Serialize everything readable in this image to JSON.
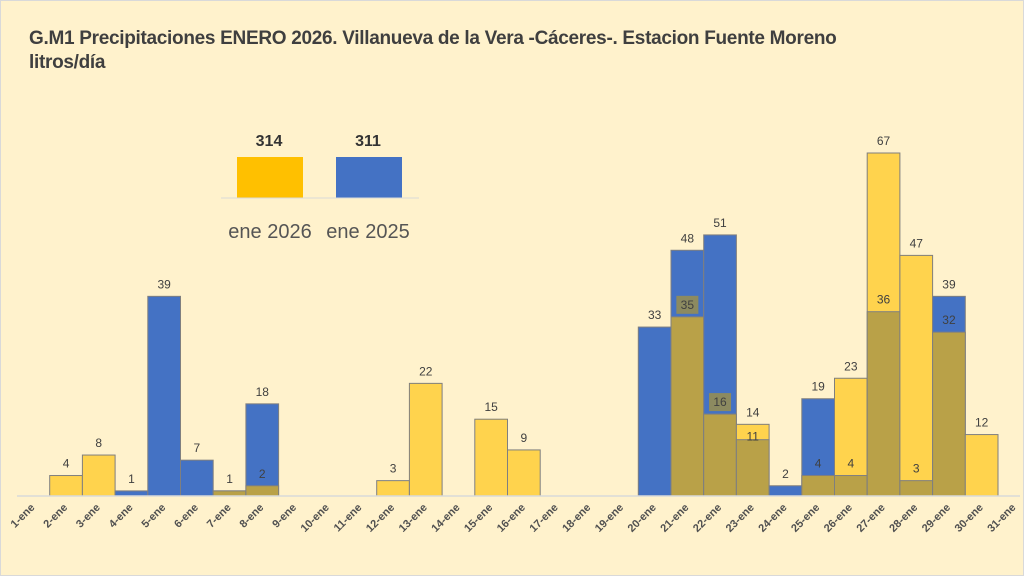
{
  "chart_data": {
    "type": "bar",
    "title_line1": "G.M1 Precipitaciones ENERO 2026. Villanueva de la Vera -Cáceres-. Estacion Fuente Moreno",
    "title_line2": "litros/día",
    "xlabel": "",
    "ylabel": "litros/día",
    "ylim": [
      0,
      70
    ],
    "grid": false,
    "overlap": true,
    "categories": [
      "1-ene",
      "2-ene",
      "3-ene",
      "4-ene",
      "5-ene",
      "6-ene",
      "7-ene",
      "8-ene",
      "9-ene",
      "10-ene",
      "11-ene",
      "12-ene",
      "13-ene",
      "14-ene",
      "15-ene",
      "16-ene",
      "17-ene",
      "18-ene",
      "19-ene",
      "20-ene",
      "21-ene",
      "22-ene",
      "23-ene",
      "24-ene",
      "25-ene",
      "26-ene",
      "27-ene",
      "28-ene",
      "29-ene",
      "30-ene",
      "31-ene"
    ],
    "series": [
      {
        "name": "ene 2026",
        "color": "#ffd34d",
        "values": [
          0,
          4,
          8,
          0,
          0,
          0,
          1,
          2,
          0,
          0,
          0,
          3,
          22,
          0,
          15,
          9,
          0,
          0,
          0,
          0,
          35,
          16,
          14,
          0,
          4,
          23,
          67,
          47,
          32,
          12,
          0
        ]
      },
      {
        "name": "ene 2025",
        "color": "#4472c4",
        "values": [
          0,
          0,
          0,
          1,
          39,
          7,
          1,
          18,
          0,
          0,
          0,
          0,
          0,
          0,
          0,
          0,
          0,
          0,
          0,
          33,
          48,
          51,
          11,
          2,
          19,
          4,
          36,
          3,
          39,
          0,
          0
        ]
      }
    ],
    "overlap_color": "#b9a148",
    "legend": {
      "placement": "top-left",
      "items": [
        {
          "name": "ene 2026",
          "total": "314",
          "color": "#ffc000"
        },
        {
          "name": "ene 2025",
          "total": "311",
          "color": "#4472c4"
        }
      ]
    }
  }
}
